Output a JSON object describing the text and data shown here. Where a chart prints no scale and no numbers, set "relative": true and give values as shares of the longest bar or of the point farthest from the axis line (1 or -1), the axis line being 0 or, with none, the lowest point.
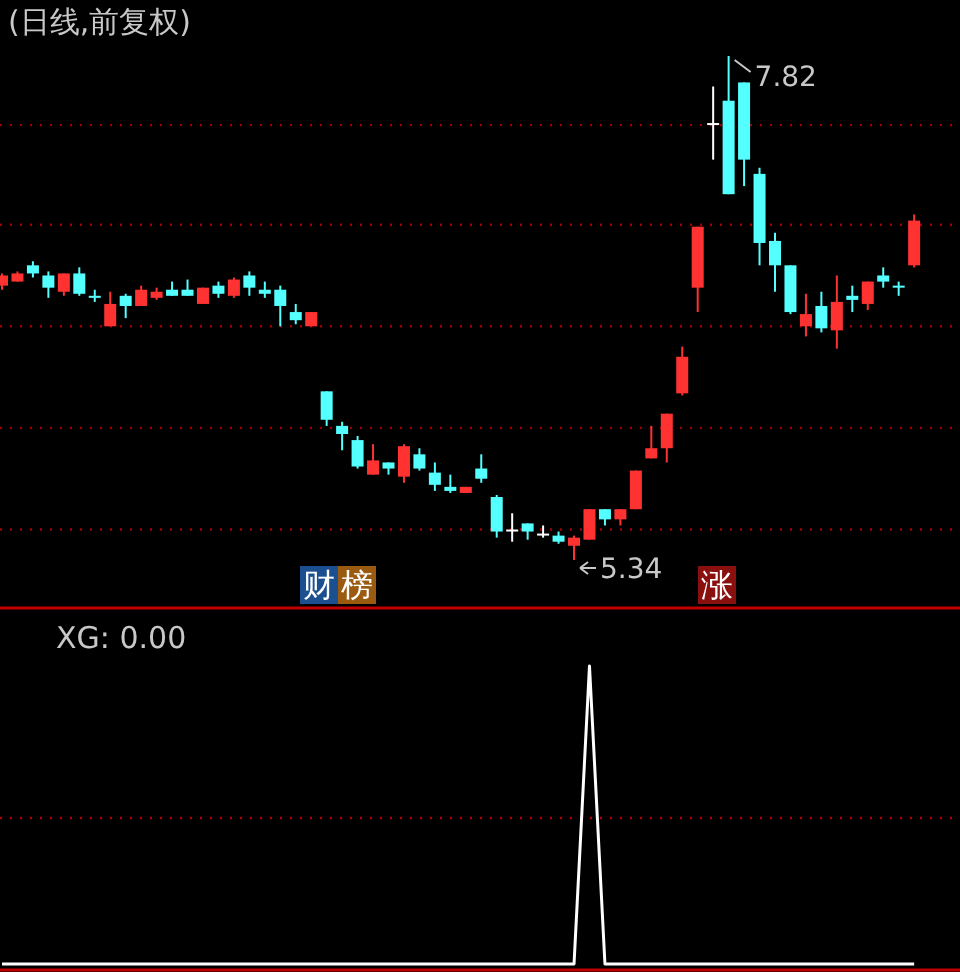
{
  "chart_data": [
    {
      "type": "candlestick",
      "title": "(日线,前复权)",
      "categories": [
        null,
        null,
        null,
        null,
        null,
        null,
        null,
        null,
        null,
        null,
        null,
        null,
        null,
        null,
        null,
        null,
        null,
        null,
        null,
        null,
        null,
        null,
        null,
        null,
        null,
        null,
        null,
        null,
        null,
        null,
        null,
        null,
        null,
        null,
        null,
        null,
        null,
        null,
        null,
        null,
        null,
        null,
        null,
        null,
        null,
        null,
        null,
        null,
        null,
        null,
        null,
        null,
        null,
        null,
        null,
        null,
        null,
        null,
        null,
        null
      ],
      "ohlc": [
        [
          6.69,
          6.75,
          6.67,
          6.74
        ],
        [
          6.71,
          6.76,
          6.71,
          6.75
        ],
        [
          6.79,
          6.81,
          6.73,
          6.75
        ],
        [
          6.74,
          6.76,
          6.63,
          6.68
        ],
        [
          6.66,
          6.75,
          6.64,
          6.75
        ],
        [
          6.75,
          6.78,
          6.64,
          6.65
        ],
        [
          6.64,
          6.67,
          6.61,
          6.63
        ],
        [
          6.49,
          6.66,
          6.49,
          6.6
        ],
        [
          6.64,
          6.65,
          6.53,
          6.59
        ],
        [
          6.59,
          6.69,
          6.59,
          6.67
        ],
        [
          6.63,
          6.68,
          6.62,
          6.66
        ],
        [
          6.67,
          6.71,
          6.64,
          6.64
        ],
        [
          6.67,
          6.72,
          6.64,
          6.64
        ],
        [
          6.6,
          6.68,
          6.6,
          6.68
        ],
        [
          6.69,
          6.71,
          6.63,
          6.65
        ],
        [
          6.64,
          6.73,
          6.63,
          6.72
        ],
        [
          6.74,
          6.76,
          6.64,
          6.68
        ],
        [
          6.67,
          6.71,
          6.63,
          6.65
        ],
        [
          6.67,
          6.69,
          6.49,
          6.59
        ],
        [
          6.56,
          6.6,
          6.5,
          6.52
        ],
        [
          6.49,
          6.56,
          6.49,
          6.56
        ],
        [
          6.17,
          6.17,
          6.0,
          6.03
        ],
        [
          6.0,
          6.02,
          5.88,
          5.96
        ],
        [
          5.93,
          5.95,
          5.79,
          5.8
        ],
        [
          5.76,
          5.91,
          5.76,
          5.83
        ],
        [
          5.82,
          5.82,
          5.76,
          5.79
        ],
        [
          5.75,
          5.91,
          5.72,
          5.9
        ],
        [
          5.86,
          5.89,
          5.78,
          5.79
        ],
        [
          5.77,
          5.82,
          5.68,
          5.71
        ],
        [
          5.7,
          5.76,
          5.67,
          5.68
        ],
        [
          5.67,
          5.7,
          5.67,
          5.7
        ],
        [
          5.79,
          5.86,
          5.72,
          5.74
        ],
        [
          5.65,
          5.66,
          5.45,
          5.48
        ],
        [
          5.49,
          5.57,
          5.43,
          5.49
        ],
        [
          5.52,
          5.52,
          5.44,
          5.48
        ],
        [
          5.47,
          5.51,
          5.45,
          5.47
        ],
        [
          5.46,
          5.48,
          5.42,
          5.43
        ],
        [
          5.41,
          5.46,
          5.34,
          5.45
        ],
        [
          5.44,
          5.59,
          5.44,
          5.59
        ],
        [
          5.59,
          5.59,
          5.51,
          5.54
        ],
        [
          5.54,
          5.59,
          5.51,
          5.59
        ],
        [
          5.59,
          5.78,
          5.59,
          5.78
        ],
        [
          5.84,
          6.0,
          5.84,
          5.89
        ],
        [
          5.89,
          6.06,
          5.82,
          6.06
        ],
        [
          6.16,
          6.39,
          6.15,
          6.34
        ],
        [
          6.68,
          6.98,
          6.56,
          6.98
        ],
        [
          7.49,
          7.67,
          7.31,
          7.49
        ],
        [
          7.6,
          7.82,
          7.14,
          7.14
        ],
        [
          7.69,
          7.69,
          7.18,
          7.31
        ],
        [
          7.24,
          7.27,
          6.79,
          6.9
        ],
        [
          6.91,
          6.95,
          6.66,
          6.79
        ],
        [
          6.79,
          6.79,
          6.55,
          6.56
        ],
        [
          6.49,
          6.65,
          6.44,
          6.55
        ],
        [
          6.59,
          6.66,
          6.46,
          6.48
        ],
        [
          6.47,
          6.74,
          6.38,
          6.61
        ],
        [
          6.64,
          6.69,
          6.56,
          6.62
        ],
        [
          6.6,
          6.71,
          6.57,
          6.71
        ],
        [
          6.74,
          6.78,
          6.68,
          6.71
        ],
        [
          6.69,
          6.71,
          6.64,
          6.68
        ],
        [
          6.79,
          7.04,
          6.78,
          7.01
        ]
      ],
      "colors": [
        "#ff3232",
        "#ff3232",
        "#54ffff",
        "#54ffff",
        "#ff3232",
        "#54ffff",
        "#54ffff",
        "#ff3232",
        "#54ffff",
        "#ff3232",
        "#ff3232",
        "#54ffff",
        "#54ffff",
        "#ff3232",
        "#54ffff",
        "#ff3232",
        "#54ffff",
        "#54ffff",
        "#54ffff",
        "#54ffff",
        "#ff3232",
        "#54ffff",
        "#54ffff",
        "#54ffff",
        "#ff3232",
        "#54ffff",
        "#ff3232",
        "#54ffff",
        "#54ffff",
        "#54ffff",
        "#ff3232",
        "#54ffff",
        "#54ffff",
        "#ffffff",
        "#54ffff",
        "#ffffff",
        "#54ffff",
        "#ff3232",
        "#ff3232",
        "#54ffff",
        "#ff3232",
        "#ff3232",
        "#ff3232",
        "#ff3232",
        "#ff3232",
        "#ff3232",
        "#ffffff",
        "#54ffff",
        "#54ffff",
        "#54ffff",
        "#54ffff",
        "#54ffff",
        "#ff3232",
        "#54ffff",
        "#ff3232",
        "#54ffff",
        "#ff3232",
        "#54ffff",
        "#54ffff",
        "#ff3232"
      ],
      "yticks": [
        {
          "value": 5.49,
          "label": null
        },
        {
          "value": 5.99,
          "label": null
        },
        {
          "value": 6.49,
          "label": null
        },
        {
          "value": 6.99,
          "label": null
        },
        {
          "value": 7.48,
          "label": null
        }
      ],
      "grid": "y",
      "tick_labels": false,
      "annotations": [
        "7.82",
        "5.34",
        "财榜",
        "涨"
      ]
    },
    {
      "type": "line",
      "title": "XG: 0.00",
      "relative": true,
      "color": "#ffffff",
      "tick_labels": false,
      "categories": [
        null,
        null,
        null,
        null,
        null,
        null,
        null,
        null,
        null,
        null,
        null,
        null,
        null,
        null,
        null,
        null,
        null,
        null,
        null,
        null,
        null,
        null,
        null,
        null,
        null,
        null,
        null,
        null,
        null,
        null,
        null,
        null,
        null,
        null,
        null,
        null,
        null,
        null,
        null,
        null,
        null,
        null,
        null,
        null,
        null,
        null,
        null,
        null,
        null,
        null,
        null,
        null,
        null,
        null,
        null,
        null,
        null,
        null,
        null,
        null
      ],
      "values": [
        0,
        0,
        0,
        0,
        0,
        0,
        0,
        0,
        0,
        0,
        0,
        0,
        0,
        0,
        0,
        0,
        0,
        0,
        0,
        0,
        0,
        0,
        0,
        0,
        0,
        0,
        0,
        0,
        0,
        0,
        0,
        0,
        0,
        0,
        0,
        0,
        0,
        0,
        1,
        0,
        0,
        0,
        0,
        0,
        0,
        0,
        0,
        0,
        0,
        0,
        0,
        0,
        0,
        0,
        0,
        0,
        0,
        0,
        0,
        0
      ],
      "ref_lines": [
        {
          "axis": "y",
          "value": 0.49,
          "color": "#b00000",
          "line_style": "dotted"
        }
      ]
    }
  ]
}
